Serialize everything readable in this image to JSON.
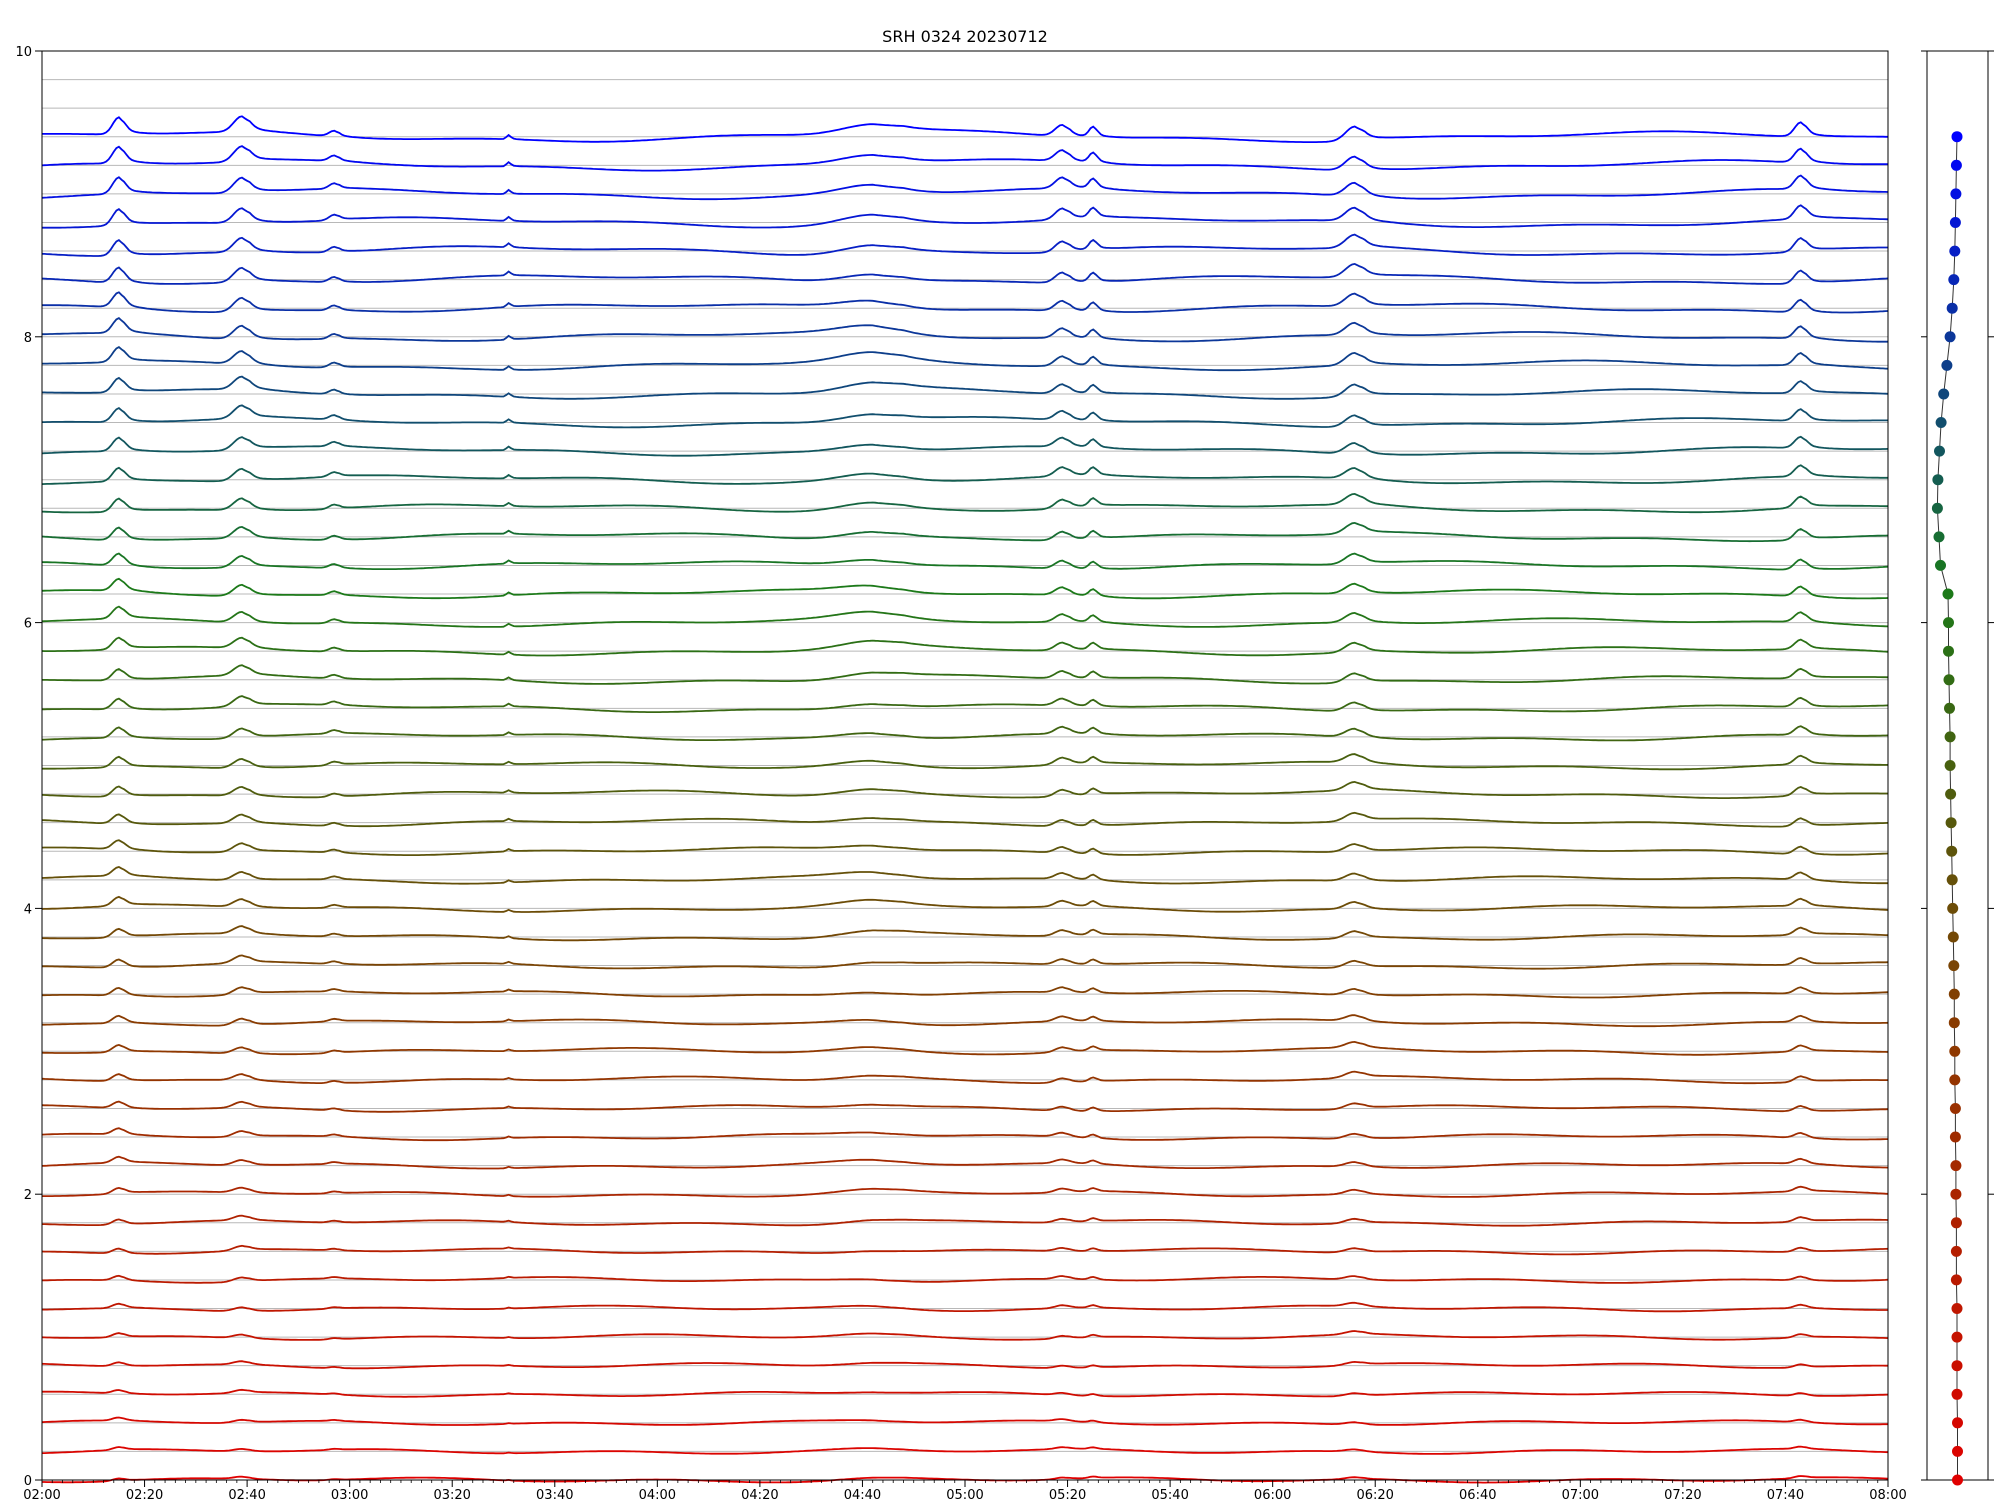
{
  "chart_data": [
    {
      "type": "line",
      "title": "SRH 0324 20230712",
      "xlabel": "",
      "ylabel": "",
      "xlim": [
        "02:00",
        "08:00"
      ],
      "ylim": [
        0,
        10
      ],
      "x_tick_labels": [
        "02:00",
        "02:20",
        "02:40",
        "03:00",
        "03:20",
        "03:40",
        "04:00",
        "04:20",
        "04:40",
        "05:00",
        "05:20",
        "05:40",
        "06:00",
        "06:20",
        "06:40",
        "07:00",
        "07:20",
        "07:40",
        "08:00"
      ],
      "y_tick_labels": [
        "0",
        "2",
        "4",
        "6",
        "8",
        "10"
      ],
      "grid": "horizontal reference line at each channel offset",
      "channel_count": 50,
      "channel_spacing": 0.2,
      "color_gradient": [
        "#e00000",
        "#8b3a00",
        "#1a7a1a",
        "#0000ff"
      ],
      "common_events": [
        {
          "time": "02:15",
          "amplitude": 0.12,
          "width_min": 1.2
        },
        {
          "time": "02:39",
          "amplitude": 0.11,
          "width_min": 1.6
        },
        {
          "time": "02:57",
          "amplitude": 0.04,
          "width_min": 1.0
        },
        {
          "time": "03:31",
          "amplitude": 0.03,
          "width_min": 0.4
        },
        {
          "time": "04:42",
          "amplitude": 0.07,
          "width_min": 6.0
        },
        {
          "time": "05:19",
          "amplitude": 0.08,
          "width_min": 1.4
        },
        {
          "time": "05:25",
          "amplitude": 0.07,
          "width_min": 0.8
        },
        {
          "time": "06:16",
          "amplitude": 0.1,
          "width_min": 1.8
        },
        {
          "time": "07:43",
          "amplitude": 0.1,
          "width_min": 1.2
        }
      ]
    },
    {
      "type": "scatter",
      "title": "",
      "y_values": [
        0.0,
        0.2,
        0.4,
        0.6,
        0.8,
        1.0,
        1.2,
        1.4,
        1.6,
        1.8,
        2.0,
        2.2,
        2.4,
        2.6,
        2.8,
        3.0,
        3.2,
        3.4,
        3.6,
        3.8,
        4.0,
        4.2,
        4.4,
        4.6,
        4.8,
        5.0,
        5.2,
        5.4,
        5.6,
        5.8,
        6.0,
        6.2,
        6.4,
        6.6,
        6.8,
        7.0,
        7.2,
        7.4,
        7.6,
        7.8,
        8.0,
        8.2,
        8.4,
        8.6,
        8.8,
        9.0,
        9.2,
        9.4
      ],
      "x_values": [
        0.5,
        0.5,
        0.5,
        0.49,
        0.49,
        0.49,
        0.49,
        0.48,
        0.48,
        0.48,
        0.47,
        0.47,
        0.46,
        0.46,
        0.45,
        0.45,
        0.44,
        0.44,
        0.43,
        0.42,
        0.41,
        0.4,
        0.39,
        0.38,
        0.37,
        0.36,
        0.36,
        0.35,
        0.34,
        0.33,
        0.33,
        0.32,
        0.18,
        0.15,
        0.12,
        0.13,
        0.16,
        0.19,
        0.24,
        0.3,
        0.36,
        0.4,
        0.43,
        0.45,
        0.46,
        0.47,
        0.48,
        0.49
      ],
      "ylim": [
        -0.2,
        10
      ],
      "connected": true
    }
  ]
}
